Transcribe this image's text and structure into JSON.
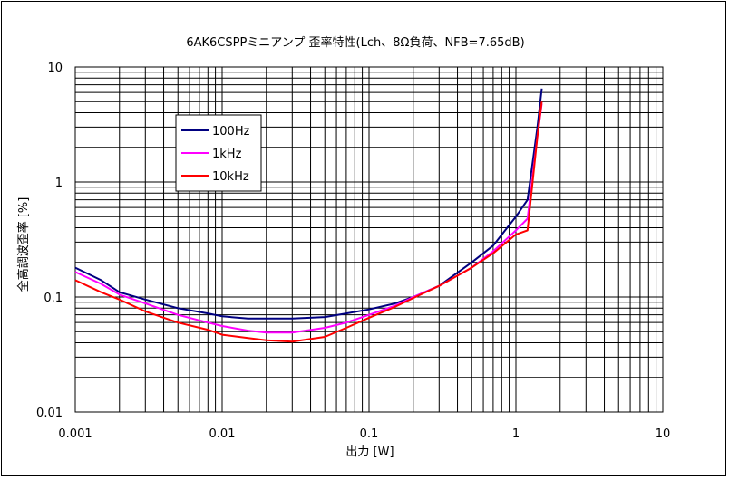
{
  "chart_data": {
    "type": "line",
    "title": "6AK6CSPPミニアンプ 歪率特性(Lch、8Ω負荷、NFB=7.65dB)",
    "xlabel": "出力 [W]",
    "ylabel": "全高調波歪率 [%]",
    "x_scale": "log",
    "y_scale": "log",
    "xlim": [
      0.001,
      10
    ],
    "ylim": [
      0.01,
      10
    ],
    "x_ticks": [
      "0.001",
      "0.01",
      "0.1",
      "1",
      "10"
    ],
    "y_ticks": [
      "0.01",
      "0.1",
      "1",
      "10"
    ],
    "grid": true,
    "legend_position": "top-left",
    "series": [
      {
        "name": "100Hz",
        "color": "#000080",
        "points": [
          [
            0.001,
            0.18
          ],
          [
            0.0015,
            0.14
          ],
          [
            0.002,
            0.11
          ],
          [
            0.003,
            0.095
          ],
          [
            0.005,
            0.08
          ],
          [
            0.008,
            0.072
          ],
          [
            0.01,
            0.068
          ],
          [
            0.015,
            0.065
          ],
          [
            0.02,
            0.065
          ],
          [
            0.03,
            0.065
          ],
          [
            0.05,
            0.067
          ],
          [
            0.07,
            0.072
          ],
          [
            0.1,
            0.078
          ],
          [
            0.15,
            0.088
          ],
          [
            0.2,
            0.1
          ],
          [
            0.3,
            0.125
          ],
          [
            0.5,
            0.2
          ],
          [
            0.7,
            0.28
          ],
          [
            1.0,
            0.5
          ],
          [
            1.2,
            0.7
          ],
          [
            1.4,
            3.0
          ],
          [
            1.5,
            6.5
          ]
        ]
      },
      {
        "name": "1kHz",
        "color": "#ff00ff",
        "points": [
          [
            0.001,
            0.165
          ],
          [
            0.0015,
            0.13
          ],
          [
            0.002,
            0.105
          ],
          [
            0.003,
            0.088
          ],
          [
            0.005,
            0.07
          ],
          [
            0.008,
            0.06
          ],
          [
            0.01,
            0.056
          ],
          [
            0.015,
            0.051
          ],
          [
            0.02,
            0.049
          ],
          [
            0.03,
            0.049
          ],
          [
            0.05,
            0.054
          ],
          [
            0.07,
            0.06
          ],
          [
            0.1,
            0.07
          ],
          [
            0.15,
            0.084
          ],
          [
            0.2,
            0.1
          ],
          [
            0.3,
            0.125
          ],
          [
            0.5,
            0.18
          ],
          [
            0.7,
            0.25
          ],
          [
            1.0,
            0.38
          ],
          [
            1.2,
            0.48
          ],
          [
            1.4,
            2.5
          ],
          [
            1.5,
            4.8
          ]
        ]
      },
      {
        "name": "10kHz",
        "color": "#ff0000",
        "points": [
          [
            0.001,
            0.14
          ],
          [
            0.0015,
            0.11
          ],
          [
            0.002,
            0.095
          ],
          [
            0.003,
            0.075
          ],
          [
            0.005,
            0.06
          ],
          [
            0.008,
            0.052
          ],
          [
            0.01,
            0.047
          ],
          [
            0.015,
            0.044
          ],
          [
            0.02,
            0.042
          ],
          [
            0.03,
            0.041
          ],
          [
            0.05,
            0.045
          ],
          [
            0.07,
            0.054
          ],
          [
            0.1,
            0.066
          ],
          [
            0.15,
            0.082
          ],
          [
            0.2,
            0.098
          ],
          [
            0.3,
            0.125
          ],
          [
            0.5,
            0.18
          ],
          [
            0.7,
            0.24
          ],
          [
            1.0,
            0.35
          ],
          [
            1.2,
            0.38
          ],
          [
            1.4,
            2.5
          ],
          [
            1.5,
            5.0
          ]
        ]
      }
    ]
  }
}
